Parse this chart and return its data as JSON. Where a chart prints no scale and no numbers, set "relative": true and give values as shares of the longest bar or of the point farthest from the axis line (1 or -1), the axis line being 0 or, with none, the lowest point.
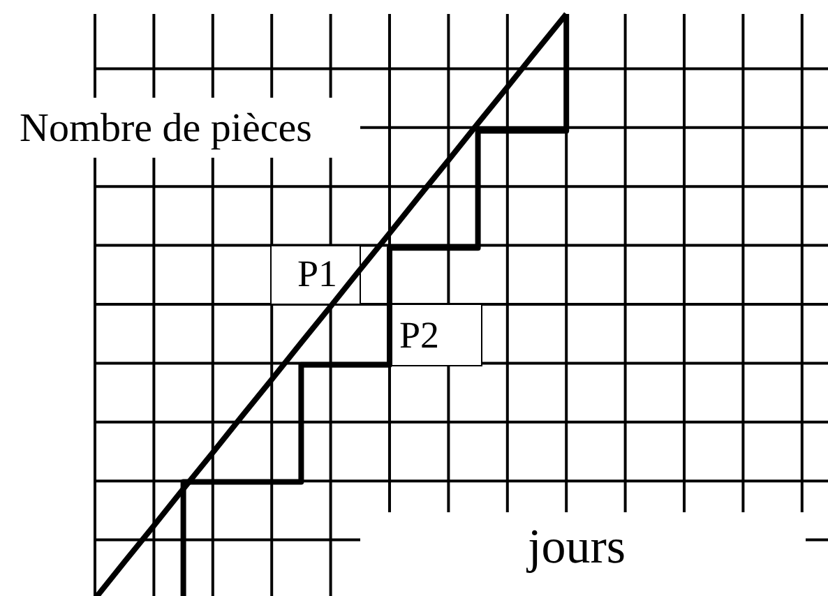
{
  "chart_data": {
    "type": "line",
    "relative": true,
    "xlabel": "jours",
    "ylabel": "Nombre de pièces",
    "grid": true,
    "categories": [
      null,
      null,
      null,
      null,
      null,
      null,
      null,
      null,
      null,
      null,
      null,
      null,
      null,
      null,
      null,
      null,
      null,
      null,
      null,
      null,
      null,
      null,
      null,
      null,
      null
    ],
    "series": [
      {
        "name": "P1",
        "color": "#000000",
        "values": [
          0,
          0.063,
          0.125,
          0.188,
          0.25,
          0.313,
          0.375,
          0.438,
          0.5,
          0.563,
          0.625,
          0.688,
          0.75,
          0.813,
          0.875,
          0.938,
          1,
          null,
          null,
          null,
          null,
          null,
          null,
          null,
          null
        ]
      },
      {
        "name": "P2",
        "color": "#000000",
        "type": "step",
        "values": [
          null,
          null,
          0,
          0.2,
          0.2,
          0.2,
          0.2,
          0.4,
          0.4,
          0.4,
          0.6,
          0.6,
          0.6,
          0.8,
          0.8,
          0.8,
          1,
          null,
          null,
          null,
          null,
          null,
          null,
          null,
          null
        ]
      }
    ]
  }
}
